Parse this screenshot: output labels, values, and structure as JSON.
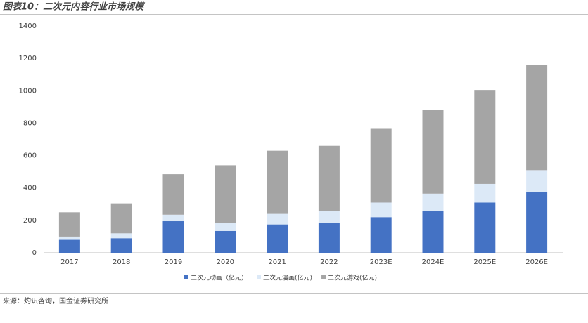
{
  "chart_data": {
    "type": "stacked_bar",
    "title": "图表10：二次元内容行业市场规模",
    "source": "来源：灼识咨询，国金证券研究所",
    "categories": [
      "2017",
      "2018",
      "2019",
      "2020",
      "2021",
      "2022",
      "2023E",
      "2024E",
      "2025E",
      "2026E"
    ],
    "series": [
      {
        "name": "二次元动画（亿元）",
        "color": "#4472c4",
        "values": [
          80,
          90,
          195,
          135,
          175,
          185,
          220,
          260,
          310,
          375
        ]
      },
      {
        "name": "二次元漫画(亿元)",
        "color": "#dce9f7",
        "values": [
          20,
          30,
          40,
          50,
          65,
          75,
          90,
          105,
          115,
          135
        ]
      },
      {
        "name": "二次元游戏(亿元)",
        "color": "#a5a5a5",
        "values": [
          150,
          185,
          250,
          355,
          390,
          400,
          455,
          515,
          580,
          650
        ]
      }
    ],
    "ylim": [
      0,
      1400
    ],
    "yticks": [
      0,
      200,
      400,
      600,
      800,
      1000,
      1200,
      1400
    ],
    "grid": false
  }
}
